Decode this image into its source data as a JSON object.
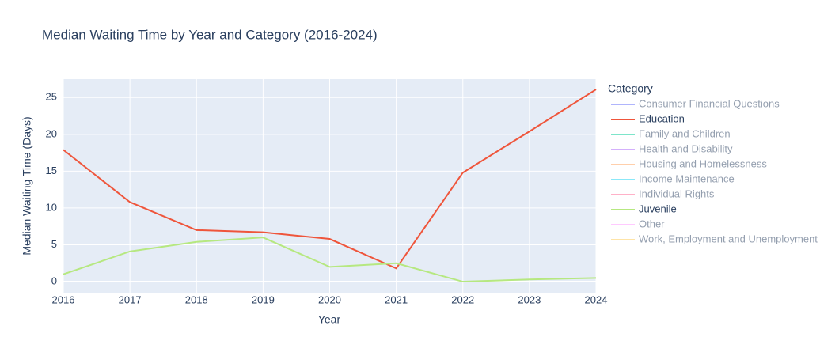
{
  "chart_data": {
    "type": "line",
    "title": "Median Waiting Time by Year and Category (2016-2024)",
    "x_label": "Year",
    "y_label": "Median Waiting Time (Days)",
    "legend_title": "Category",
    "legend": "right",
    "grid": true,
    "x": [
      2016,
      2017,
      2018,
      2019,
      2020,
      2021,
      2022,
      2023,
      2024
    ],
    "xlim": [
      2016,
      2024
    ],
    "xticks": [
      2016,
      2017,
      2018,
      2019,
      2020,
      2021,
      2022,
      2023,
      2024
    ],
    "ylim": [
      -1.5,
      27.5
    ],
    "yticks": [
      0,
      5,
      10,
      15,
      20,
      25
    ],
    "series": [
      {
        "name": "Consumer Financial Questions",
        "color": "#636efa",
        "visible": "legendonly"
      },
      {
        "name": "Education",
        "color": "#ef553b",
        "values": [
          17.9,
          10.8,
          7.0,
          6.7,
          5.8,
          1.8,
          14.8,
          20.4,
          26.1
        ]
      },
      {
        "name": "Family and Children",
        "color": "#00cc96",
        "visible": "legendonly"
      },
      {
        "name": "Health and Disability",
        "color": "#ab63fa",
        "visible": "legendonly"
      },
      {
        "name": "Housing and Homelessness",
        "color": "#ffa15a",
        "visible": "legendonly"
      },
      {
        "name": "Income Maintenance",
        "color": "#19d3f3",
        "visible": "legendonly"
      },
      {
        "name": "Individual Rights",
        "color": "#ff6692",
        "visible": "legendonly"
      },
      {
        "name": "Juvenile",
        "color": "#b6e880",
        "values": [
          1.0,
          4.1,
          5.4,
          6.0,
          2.0,
          2.5,
          0.0,
          0.3,
          0.5
        ]
      },
      {
        "name": "Other",
        "color": "#ff97ff",
        "visible": "legendonly"
      },
      {
        "name": "Work, Employment and Unemployment",
        "color": "#fecb52",
        "visible": "legendonly"
      }
    ]
  }
}
